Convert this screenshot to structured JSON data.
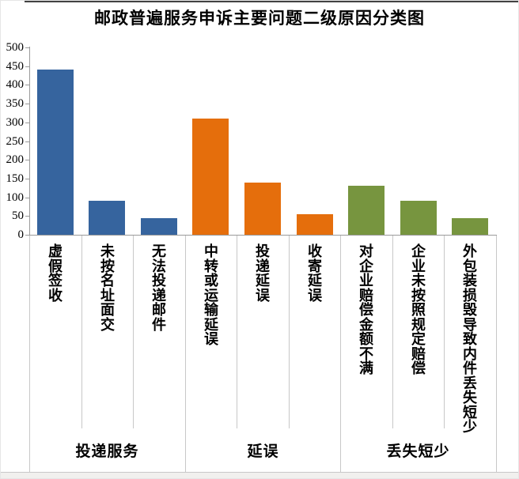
{
  "chart_data": {
    "type": "bar",
    "title": "邮政普遍服务申诉主要问题二级原因分类图",
    "categories": [
      "虚假签收",
      "未按名址面交",
      "无法投递邮件",
      "中转或运输延误",
      "投递延误",
      "收寄延误",
      "对企业赔偿金额不满",
      "企业未按照规定赔偿",
      "外包装损毁导致内件丢失短少"
    ],
    "values": [
      440,
      90,
      45,
      310,
      140,
      55,
      130,
      90,
      45
    ],
    "groups": [
      {
        "label": "投递服务",
        "span": 3,
        "color": "#36649E"
      },
      {
        "label": "延误",
        "span": 3,
        "color": "#E56E0C"
      },
      {
        "label": "丢失短少",
        "span": 3,
        "color": "#77953F"
      }
    ],
    "xlabel": "",
    "ylabel": "",
    "ylim": [
      0,
      500
    ],
    "ytick_interval": 50,
    "grid": false,
    "legend": false,
    "axis_color": "#9A9A9A",
    "divider_color": "#C8C8C8"
  }
}
